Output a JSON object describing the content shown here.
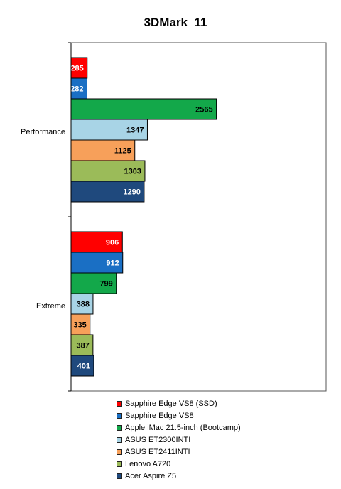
{
  "chart_data": {
    "type": "bar",
    "orientation": "horizontal",
    "title": "3DMark  11",
    "categories": [
      "Performance",
      "Extreme"
    ],
    "xlim": [
      0,
      4500
    ],
    "grid": false,
    "legend_position": "bottom",
    "series": [
      {
        "name": "Sapphire Edge VS8 (SSD)",
        "color": "#ff0000",
        "label_color": "#ffffff",
        "values": [
          285,
          906
        ]
      },
      {
        "name": "Sapphire Edge VS8",
        "color": "#1a6fc4",
        "label_color": "#ffffff",
        "values": [
          282,
          912
        ]
      },
      {
        "name": "Apple iMac 21.5-inch (Bootcamp)",
        "color": "#13a84a",
        "label_color": "#000000",
        "values": [
          2565,
          799
        ]
      },
      {
        "name": "ASUS ET2300INTI",
        "color": "#a8d4e6",
        "label_color": "#000000",
        "values": [
          1347,
          388
        ]
      },
      {
        "name": "ASUS ET2411INTI",
        "color": "#f7a05a",
        "label_color": "#000000",
        "values": [
          1125,
          335
        ]
      },
      {
        "name": "Lenovo A720",
        "color": "#9bbb59",
        "label_color": "#000000",
        "values": [
          1303,
          387
        ]
      },
      {
        "name": "Acer Aspire Z5",
        "color": "#1f497d",
        "label_color": "#ffffff",
        "values": [
          1290,
          401
        ]
      }
    ]
  }
}
